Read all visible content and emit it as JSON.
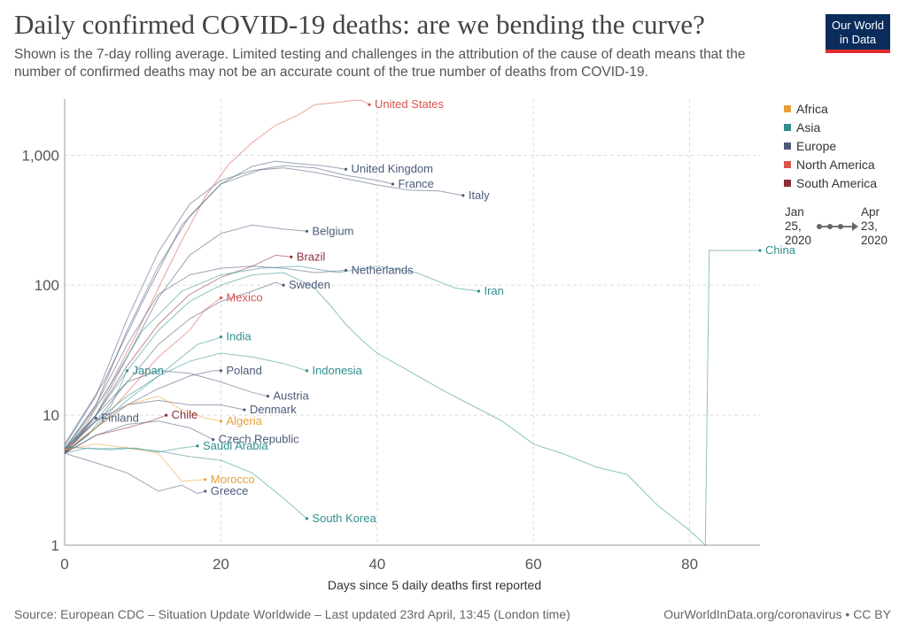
{
  "header": {
    "title": "Daily confirmed COVID-19 deaths: are we bending the curve?",
    "subtitle": "Shown is the 7-day rolling average. Limited testing and challenges in the attribution of the cause of death means that the number of confirmed deaths may not be an accurate count of the true number of deaths from COVID-19.",
    "logo_line1": "Our World",
    "logo_line2": "in Data"
  },
  "colors": {
    "Africa": "#e9a03b",
    "Asia": "#2f8f8f",
    "Europe": "#4c5a7a",
    "North America": "#d9534f",
    "South America": "#8b2e3a",
    "grid": "#dddddd",
    "background_lines": "#b8b8b8"
  },
  "legend": {
    "items": [
      {
        "label": "Africa",
        "key": "Africa"
      },
      {
        "label": "Asia",
        "key": "Asia"
      },
      {
        "label": "Europe",
        "key": "Europe"
      },
      {
        "label": "North America",
        "key": "North America"
      },
      {
        "label": "South America",
        "key": "South America"
      }
    ]
  },
  "timeline": {
    "start_l1": "Jan",
    "start_l2": "25,",
    "start_l3": "2020",
    "end_l1": "Apr",
    "end_l2": "23,",
    "end_l3": "2020"
  },
  "footer": {
    "source": "Source: European CDC – Situation Update Worldwide – Last updated 23rd April, 13:45 (London time)",
    "url": "OurWorldInData.org/coronavirus • CC BY"
  },
  "chart_data": {
    "type": "line",
    "xlabel": "Days since 5 daily deaths first reported",
    "ylabel": "",
    "xlim": [
      0,
      89
    ],
    "ylim": [
      1,
      2700
    ],
    "y_scale": "log",
    "grid": true,
    "x_ticks": [
      0,
      20,
      40,
      60,
      80
    ],
    "y_ticks": [
      1,
      10,
      100,
      1000
    ],
    "y_tick_labels": [
      "1",
      "10",
      "100",
      "1,000"
    ],
    "series": [
      {
        "name": "United States",
        "region": "North America",
        "points": [
          [
            0,
            5.2
          ],
          [
            3,
            9
          ],
          [
            6,
            18
          ],
          [
            9,
            40
          ],
          [
            12,
            95
          ],
          [
            15,
            220
          ],
          [
            18,
            480
          ],
          [
            21,
            850
          ],
          [
            24,
            1250
          ],
          [
            27,
            1700
          ],
          [
            30,
            2050
          ],
          [
            32,
            2450
          ],
          [
            35,
            2550
          ],
          [
            37,
            2650
          ],
          [
            38,
            2650
          ],
          [
            39,
            2450
          ]
        ]
      },
      {
        "name": "United Kingdom",
        "region": "Europe",
        "points": [
          [
            0,
            5.5
          ],
          [
            4,
            12
          ],
          [
            8,
            45
          ],
          [
            12,
            140
          ],
          [
            16,
            340
          ],
          [
            20,
            600
          ],
          [
            24,
            820
          ],
          [
            27,
            900
          ],
          [
            30,
            860
          ],
          [
            33,
            830
          ],
          [
            36,
            780
          ]
        ]
      },
      {
        "name": "France",
        "region": "Europe",
        "points": [
          [
            0,
            5.8
          ],
          [
            4,
            14
          ],
          [
            8,
            55
          ],
          [
            12,
            180
          ],
          [
            16,
            420
          ],
          [
            20,
            640
          ],
          [
            24,
            760
          ],
          [
            28,
            830
          ],
          [
            32,
            800
          ],
          [
            36,
            700
          ],
          [
            40,
            640
          ],
          [
            42,
            600
          ]
        ]
      },
      {
        "name": "Italy",
        "region": "Europe",
        "points": [
          [
            0,
            6
          ],
          [
            5,
            18
          ],
          [
            10,
            75
          ],
          [
            15,
            290
          ],
          [
            20,
            600
          ],
          [
            25,
            770
          ],
          [
            28,
            800
          ],
          [
            32,
            740
          ],
          [
            36,
            660
          ],
          [
            40,
            590
          ],
          [
            44,
            540
          ],
          [
            48,
            530
          ],
          [
            51,
            490
          ]
        ]
      },
      {
        "name": "Belgium",
        "region": "Europe",
        "points": [
          [
            0,
            5.1
          ],
          [
            4,
            10
          ],
          [
            8,
            28
          ],
          [
            12,
            80
          ],
          [
            16,
            170
          ],
          [
            20,
            250
          ],
          [
            24,
            290
          ],
          [
            28,
            270
          ],
          [
            31,
            260
          ]
        ]
      },
      {
        "name": "Brazil",
        "region": "South America",
        "points": [
          [
            0,
            5.1
          ],
          [
            4,
            10
          ],
          [
            8,
            24
          ],
          [
            12,
            50
          ],
          [
            16,
            85
          ],
          [
            20,
            115
          ],
          [
            24,
            140
          ],
          [
            27,
            170
          ],
          [
            29,
            165
          ]
        ]
      },
      {
        "name": "Netherlands",
        "region": "Europe",
        "points": [
          [
            0,
            5.5
          ],
          [
            4,
            12
          ],
          [
            8,
            35
          ],
          [
            12,
            85
          ],
          [
            16,
            120
          ],
          [
            20,
            135
          ],
          [
            24,
            140
          ],
          [
            28,
            135
          ],
          [
            32,
            125
          ],
          [
            36,
            130
          ]
        ]
      },
      {
        "name": "Iran",
        "region": "Asia",
        "points": [
          [
            0,
            5.3
          ],
          [
            5,
            14
          ],
          [
            10,
            45
          ],
          [
            15,
            90
          ],
          [
            20,
            120
          ],
          [
            25,
            135
          ],
          [
            30,
            140
          ],
          [
            35,
            125
          ],
          [
            40,
            140
          ],
          [
            45,
            125
          ],
          [
            50,
            95
          ],
          [
            53,
            90
          ]
        ]
      },
      {
        "name": "Sweden",
        "region": "Europe",
        "points": [
          [
            0,
            5.2
          ],
          [
            4,
            9
          ],
          [
            8,
            18
          ],
          [
            12,
            35
          ],
          [
            16,
            55
          ],
          [
            20,
            75
          ],
          [
            24,
            90
          ],
          [
            27,
            105
          ],
          [
            28,
            100
          ]
        ]
      },
      {
        "name": "Mexico",
        "region": "North America",
        "points": [
          [
            0,
            5.2
          ],
          [
            4,
            8
          ],
          [
            8,
            15
          ],
          [
            12,
            28
          ],
          [
            16,
            45
          ],
          [
            18,
            65
          ],
          [
            20,
            80
          ]
        ]
      },
      {
        "name": "India",
        "region": "Asia",
        "points": [
          [
            0,
            5.1
          ],
          [
            4,
            8
          ],
          [
            8,
            13
          ],
          [
            12,
            20
          ],
          [
            15,
            28
          ],
          [
            17,
            35
          ],
          [
            19,
            38
          ],
          [
            20,
            40
          ]
        ]
      },
      {
        "name": "Indonesia",
        "region": "Asia",
        "points": [
          [
            0,
            5.6
          ],
          [
            4,
            9
          ],
          [
            8,
            14
          ],
          [
            12,
            20
          ],
          [
            16,
            26
          ],
          [
            20,
            30
          ],
          [
            24,
            28
          ],
          [
            28,
            25
          ],
          [
            31,
            22
          ]
        ]
      },
      {
        "name": "Japan",
        "region": "Asia",
        "points": [
          [
            0,
            5.1
          ],
          [
            3,
            7
          ],
          [
            6,
            12
          ],
          [
            8,
            22
          ]
        ]
      },
      {
        "name": "Poland",
        "region": "Europe",
        "points": [
          [
            0,
            5.1
          ],
          [
            4,
            8
          ],
          [
            8,
            12
          ],
          [
            12,
            16
          ],
          [
            16,
            20
          ],
          [
            19,
            22
          ],
          [
            20,
            22
          ]
        ]
      },
      {
        "name": "Austria",
        "region": "Europe",
        "points": [
          [
            0,
            5.4
          ],
          [
            4,
            10
          ],
          [
            8,
            18
          ],
          [
            12,
            22
          ],
          [
            16,
            21
          ],
          [
            20,
            18
          ],
          [
            24,
            15
          ],
          [
            26,
            14
          ]
        ]
      },
      {
        "name": "Denmark",
        "region": "Europe",
        "points": [
          [
            0,
            5.3
          ],
          [
            4,
            9
          ],
          [
            8,
            12
          ],
          [
            12,
            13
          ],
          [
            16,
            12
          ],
          [
            20,
            12
          ],
          [
            23,
            11
          ]
        ]
      },
      {
        "name": "Finland",
        "region": "Europe",
        "points": [
          [
            0,
            5.1
          ],
          [
            2,
            7
          ],
          [
            4,
            9.5
          ]
        ]
      },
      {
        "name": "Chile",
        "region": "South America",
        "points": [
          [
            0,
            5.1
          ],
          [
            4,
            7
          ],
          [
            8,
            8
          ],
          [
            11,
            9
          ],
          [
            13,
            10
          ]
        ]
      },
      {
        "name": "Algeria",
        "region": "Africa",
        "points": [
          [
            0,
            5.4
          ],
          [
            4,
            8
          ],
          [
            8,
            12
          ],
          [
            12,
            14
          ],
          [
            15,
            11
          ],
          [
            18,
            9.5
          ],
          [
            20,
            9
          ]
        ]
      },
      {
        "name": "Czech Republic",
        "region": "Europe",
        "points": [
          [
            0,
            5.1
          ],
          [
            4,
            7
          ],
          [
            8,
            8.5
          ],
          [
            12,
            9
          ],
          [
            16,
            8
          ],
          [
            19,
            6.5
          ]
        ]
      },
      {
        "name": "Saudi Arabia",
        "region": "Asia",
        "points": [
          [
            0,
            5.1
          ],
          [
            3,
            5.6
          ],
          [
            6,
            5.4
          ],
          [
            9,
            5.6
          ],
          [
            12,
            5.2
          ],
          [
            15,
            5.6
          ],
          [
            17,
            5.8
          ]
        ]
      },
      {
        "name": "Morocco",
        "region": "Africa",
        "points": [
          [
            0,
            5.4
          ],
          [
            4,
            6
          ],
          [
            8,
            5.6
          ],
          [
            12,
            5.1
          ],
          [
            15,
            3.1
          ],
          [
            18,
            3.2
          ]
        ]
      },
      {
        "name": "Greece",
        "region": "Europe",
        "points": [
          [
            0,
            5.1
          ],
          [
            4,
            4.3
          ],
          [
            8,
            3.6
          ],
          [
            12,
            2.6
          ],
          [
            15,
            2.9
          ],
          [
            17,
            2.5
          ],
          [
            18,
            2.6
          ]
        ]
      },
      {
        "name": "South Korea",
        "region": "Asia",
        "points": [
          [
            0,
            5.7
          ],
          [
            4,
            5.5
          ],
          [
            8,
            5.6
          ],
          [
            12,
            5.3
          ],
          [
            16,
            4.8
          ],
          [
            20,
            4.5
          ],
          [
            24,
            3.6
          ],
          [
            28,
            2.3
          ],
          [
            31,
            1.6
          ]
        ]
      },
      {
        "name": "China",
        "region": "Asia",
        "points": [
          [
            0,
            5.5
          ],
          [
            4,
            10
          ],
          [
            8,
            22
          ],
          [
            12,
            45
          ],
          [
            16,
            75
          ],
          [
            20,
            100
          ],
          [
            24,
            120
          ],
          [
            28,
            125
          ],
          [
            30,
            110
          ],
          [
            32,
            95
          ],
          [
            34,
            70
          ],
          [
            36,
            50
          ],
          [
            38,
            38
          ],
          [
            40,
            30
          ],
          [
            44,
            22
          ],
          [
            48,
            16
          ],
          [
            52,
            12
          ],
          [
            56,
            9
          ],
          [
            60,
            6
          ],
          [
            64,
            5
          ],
          [
            68,
            4
          ],
          [
            72,
            3.5
          ],
          [
            76,
            2
          ],
          [
            80,
            1.3
          ],
          [
            82,
            1
          ],
          [
            82.5,
            185
          ],
          [
            89,
            185
          ]
        ]
      }
    ]
  }
}
